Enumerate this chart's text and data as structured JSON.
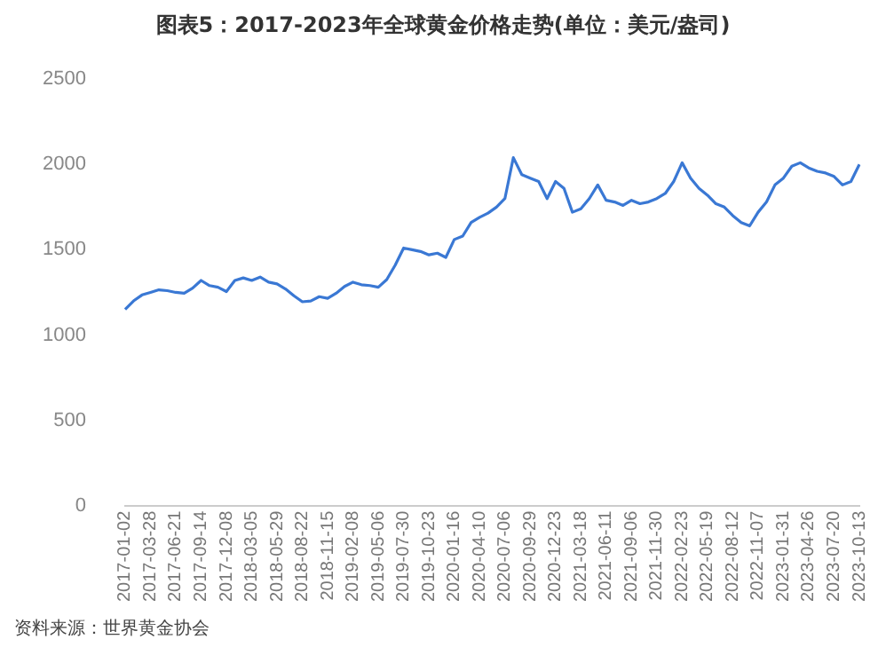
{
  "chart_data": {
    "type": "line",
    "title": "图表5：2017-2023年全球黄金价格走势(单位：美元/盎司)",
    "categories": [
      "2017-01-02",
      null,
      null,
      "2017-03-28",
      null,
      null,
      "2017-06-21",
      null,
      null,
      "2017-09-14",
      null,
      null,
      "2017-12-08",
      null,
      null,
      "2018-03-05",
      null,
      null,
      "2018-05-29",
      null,
      null,
      "2018-08-22",
      null,
      null,
      "2018-11-15",
      null,
      null,
      "2019-02-08",
      null,
      null,
      "2019-05-06",
      null,
      null,
      "2019-07-30",
      null,
      null,
      "2019-10-23",
      null,
      null,
      "2020-01-16",
      null,
      null,
      "2020-04-10",
      null,
      null,
      "2020-07-06",
      null,
      null,
      "2020-09-29",
      null,
      null,
      "2020-12-23",
      null,
      null,
      "2021-03-18",
      null,
      null,
      "2021-06-11",
      null,
      null,
      "2021-09-06",
      null,
      null,
      "2021-11-30",
      null,
      null,
      "2022-02-23",
      null,
      null,
      "2022-05-19",
      null,
      null,
      "2022-08-12",
      null,
      null,
      "2022-11-07",
      null,
      null,
      "2023-01-31",
      null,
      null,
      "2023-04-26",
      null,
      null,
      "2023-07-20",
      null,
      null,
      "2023-10-13"
    ],
    "series": [
      {
        "color": "#3a78d4",
        "values": [
          1150,
          1200,
          1235,
          1250,
          1265,
          1260,
          1250,
          1245,
          1275,
          1320,
          1290,
          1280,
          1255,
          1320,
          1335,
          1320,
          1340,
          1310,
          1300,
          1270,
          1230,
          1195,
          1200,
          1225,
          1215,
          1245,
          1285,
          1310,
          1295,
          1290,
          1280,
          1325,
          1410,
          1510,
          1500,
          1490,
          1470,
          1480,
          1455,
          1560,
          1580,
          1660,
          1690,
          1715,
          1750,
          1800,
          2040,
          1940,
          1920,
          1900,
          1800,
          1900,
          1860,
          1720,
          1740,
          1800,
          1880,
          1790,
          1780,
          1760,
          1790,
          1770,
          1780,
          1800,
          1830,
          1900,
          2010,
          1920,
          1860,
          1820,
          1770,
          1750,
          1700,
          1660,
          1640,
          1720,
          1780,
          1880,
          1920,
          1990,
          2010,
          1980,
          1960,
          1950,
          1930,
          1880,
          1900,
          2000
        ]
      }
    ],
    "ylim": [
      0,
      2500
    ],
    "yticks": [
      0,
      500,
      1000,
      1500,
      2000,
      2500
    ],
    "grid": false,
    "legend": false,
    "marker": "none",
    "line_style": "solid",
    "annotations": [
      "资料来源：世界黄金协会"
    ]
  }
}
